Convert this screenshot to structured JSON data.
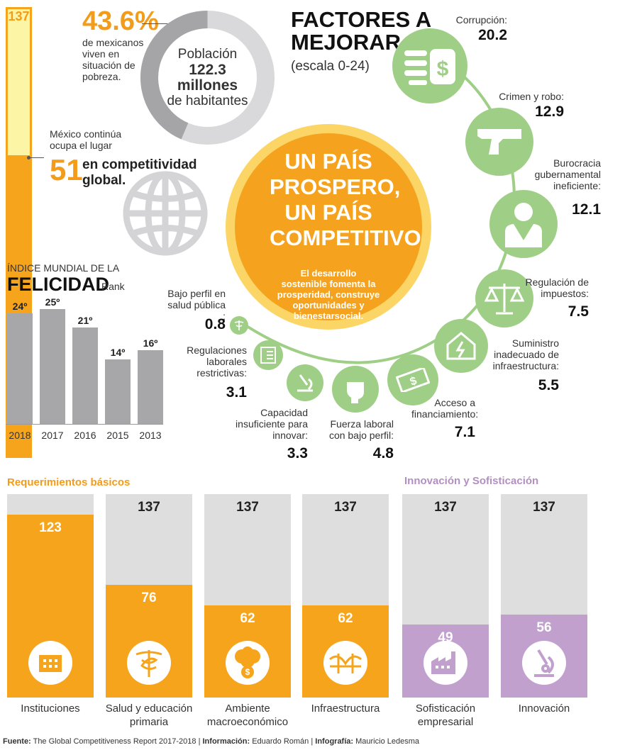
{
  "rank": {
    "total": "137",
    "mexico_position": "51",
    "intro": "México continúa ocupa el lugar",
    "suffix": "en competitividad global."
  },
  "poverty": {
    "percent": "43.6%",
    "caption": "de mexicanos viven en situación de pobreza."
  },
  "population": {
    "label": "Población",
    "value": "122.3",
    "unit_line1": "millones",
    "unit_line2": "de habitantes"
  },
  "center": {
    "title": "UN PAÍS PROSPERO, UN PAÍS COMPETITIVO",
    "subtitle": "El desarrollo sostenible fomenta la prosperidad, construye oportunidades y bienestarsocial."
  },
  "factors": {
    "title_line1": "FACTORES A",
    "title_line2": "MEJORAR",
    "scale": "(escala 0-24)",
    "items": [
      {
        "label": "Corrupción:",
        "value": "20.2",
        "icon": "money-hand-icon"
      },
      {
        "label": "Crimen y robo:",
        "value": "12.9",
        "icon": "gun-icon"
      },
      {
        "label": "Burocracia gubernamental ineficiente:",
        "value": "12.1",
        "icon": "bureaucrat-icon"
      },
      {
        "label": "Regulación de impuestos:",
        "value": "7.5",
        "icon": "scales-icon"
      },
      {
        "label": "Suministro inadecuado de infraestructura:",
        "value": "5.5",
        "icon": "house-power-icon"
      },
      {
        "label": "Acceso a financiamiento:",
        "value": "7.1",
        "icon": "banknote-icon"
      },
      {
        "label": "Fuerza laboral con bajo perfil:",
        "value": "4.8",
        "icon": "fist-icon"
      },
      {
        "label": "Capacidad insuficiente para innovar:",
        "value": "3.3",
        "icon": "microscope-icon"
      },
      {
        "label": "Regulaciones laborales restrictivas:",
        "value": "3.1",
        "icon": "checklist-icon"
      },
      {
        "label": "Bajo perfil en salud pública :",
        "value": "0.8",
        "icon": "caduceus-icon"
      }
    ]
  },
  "happiness": {
    "title_small": "ÍNDICE MUNDIAL DE LA",
    "title_big": "FELICIDAD",
    "title_suffix": "Rank"
  },
  "requirements": {
    "basic_title": "Requerimientos básicos",
    "innovation_title": "Innovación y Sofisticación",
    "colors": {
      "basic": "#f7a41d",
      "innovation": "#c1a0cd",
      "background": "#dedede"
    }
  },
  "chart_data": [
    {
      "type": "bar",
      "title": "ÍNDICE MUNDIAL DE LA FELICIDAD",
      "ylabel": "Rank",
      "categories": [
        "2018",
        "2017",
        "2016",
        "2015",
        "2013"
      ],
      "values": [
        24,
        25,
        21,
        14,
        16
      ],
      "value_labels": [
        "24º",
        "25º",
        "21º",
        "14º",
        "16º"
      ],
      "ylim": [
        0,
        25
      ]
    },
    {
      "type": "bar",
      "title": "FACTORES A MEJORAR",
      "categories": [
        "Corrupción",
        "Crimen y robo",
        "Burocracia gubernamental ineficiente",
        "Regulación de impuestos",
        "Suministro inadecuado de infraestructura",
        "Acceso a financiamiento",
        "Fuerza laboral con bajo perfil",
        "Capacidad insuficiente para innovar",
        "Regulaciones laborales restrictivas",
        "Bajo perfil en salud pública"
      ],
      "values": [
        20.2,
        12.9,
        12.1,
        7.5,
        5.5,
        7.1,
        4.8,
        3.3,
        3.1,
        0.8
      ],
      "ylim": [
        0,
        24
      ]
    },
    {
      "type": "bar",
      "categories": [
        "Instituciones",
        "Salud y educación primaria",
        "Ambiente macroeconómico",
        "Infraestructura",
        "Sofisticación empresarial",
        "Innovación"
      ],
      "groups": [
        "Requerimientos básicos",
        "Requerimientos básicos",
        "Requerimientos básicos",
        "Requerimientos básicos",
        "Innovación y Sofisticación",
        "Innovación y Sofisticación"
      ],
      "values": [
        123,
        76,
        62,
        62,
        49,
        56
      ],
      "max": 137,
      "max_labels": [
        "",
        "137",
        "137",
        "137",
        "137",
        "137"
      ],
      "icons": [
        "building-icon",
        "caduceus-icon",
        "money-tree-icon",
        "bridge-icon",
        "factory-icon",
        "microscope-icon"
      ],
      "ylim": [
        0,
        137
      ]
    }
  ],
  "footer": {
    "source_label": "Fuente:",
    "source": "The Global Competitiveness Report 2017-2018",
    "info_label": "Información:",
    "info": "Eduardo Román",
    "graphic_label": "Infografía:",
    "graphic": "Mauricio Ledesma"
  }
}
